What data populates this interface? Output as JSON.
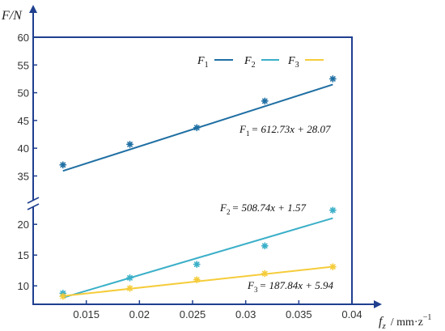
{
  "chart_data": {
    "type": "scatter",
    "title": "",
    "xlabel": "f_z / mm·z^-1",
    "ylabel": "F/N",
    "xlabel_parts": {
      "symbol": "f",
      "sub": "z",
      "unit": "/ mm·z",
      "exp": "−1"
    },
    "ylabel_text": "F/N",
    "xlim": [
      0.01,
      0.04
    ],
    "y_axis_break": true,
    "upper_ylim": [
      32,
      60
    ],
    "lower_ylim": [
      7,
      22
    ],
    "x_ticks": [
      0.015,
      0.02,
      0.025,
      0.03,
      0.035,
      0.04
    ],
    "x_tick_labels": [
      "0.015",
      "0.02",
      "0.025",
      "0.03",
      "0.035",
      "0.04"
    ],
    "y_ticks_upper": [
      35,
      40,
      45,
      50,
      55,
      60
    ],
    "y_ticks_lower": [
      10,
      15,
      20
    ],
    "legend_placement": "top-right",
    "x": [
      0.0128,
      0.0191,
      0.0254,
      0.0318,
      0.0382
    ],
    "series": [
      {
        "name": "F1",
        "name_main": "F",
        "name_sub": "1",
        "color": "#1f6fa3",
        "panel": "upper",
        "values": [
          37.0,
          40.7,
          43.7,
          48.5,
          52.5
        ],
        "fit": {
          "slope": 612.73,
          "intercept": 28.07
        },
        "equation_rhs": "= 612.73x + 28.07"
      },
      {
        "name": "F2",
        "name_main": "F",
        "name_sub": "2",
        "color": "#3aafc8",
        "panel": "lower",
        "values": [
          8.8,
          11.3,
          13.5,
          16.5,
          22.3
        ],
        "fit": {
          "slope": 508.74,
          "intercept": 1.57
        },
        "equation_rhs": "= 508.74x + 1.57"
      },
      {
        "name": "F3",
        "name_main": "F",
        "name_sub": "3",
        "color": "#f5cc3a",
        "panel": "lower",
        "values": [
          8.3,
          9.6,
          11.0,
          12.0,
          13.1
        ],
        "fit": {
          "slope": 187.84,
          "intercept": 5.94
        },
        "equation_rhs": "= 187.84x + 5.94"
      }
    ]
  }
}
